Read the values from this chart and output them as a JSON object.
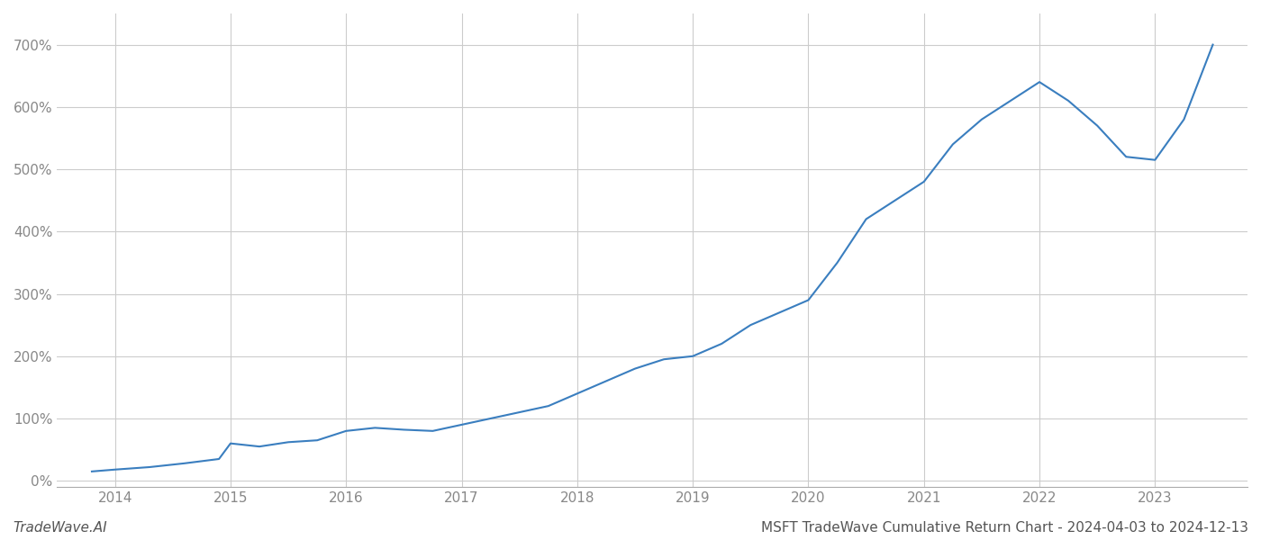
{
  "title": "MSFT TradeWave Cumulative Return Chart - 2024-04-03 to 2024-12-13",
  "watermark": "TradeWave.AI",
  "line_color": "#3a7ebf",
  "background_color": "#ffffff",
  "grid_color": "#cccccc",
  "x_years": [
    2014,
    2015,
    2016,
    2017,
    2018,
    2019,
    2020,
    2021,
    2022,
    2023
  ],
  "x_values": [
    2013.8,
    2014.0,
    2014.3,
    2014.6,
    2014.9,
    2015.0,
    2015.25,
    2015.5,
    2015.75,
    2016.0,
    2016.25,
    2016.5,
    2016.75,
    2017.0,
    2017.25,
    2017.5,
    2017.75,
    2018.0,
    2018.25,
    2018.5,
    2018.75,
    2019.0,
    2019.25,
    2019.5,
    2019.75,
    2020.0,
    2020.25,
    2020.5,
    2020.75,
    2021.0,
    2021.25,
    2021.5,
    2021.75,
    2022.0,
    2022.25,
    2022.5,
    2022.75,
    2023.0,
    2023.25,
    2023.5
  ],
  "y_values": [
    15,
    18,
    22,
    28,
    35,
    60,
    55,
    62,
    65,
    80,
    85,
    82,
    80,
    90,
    100,
    110,
    120,
    140,
    160,
    180,
    195,
    200,
    220,
    250,
    270,
    290,
    350,
    420,
    450,
    480,
    540,
    580,
    610,
    640,
    610,
    570,
    520,
    515,
    580,
    700
  ],
  "ylim": [
    -10,
    750
  ],
  "yticks": [
    0,
    100,
    200,
    300,
    400,
    500,
    600,
    700
  ],
  "xlim": [
    2013.5,
    2023.8
  ],
  "line_width": 1.5,
  "title_fontsize": 11,
  "tick_fontsize": 11,
  "watermark_fontsize": 11
}
